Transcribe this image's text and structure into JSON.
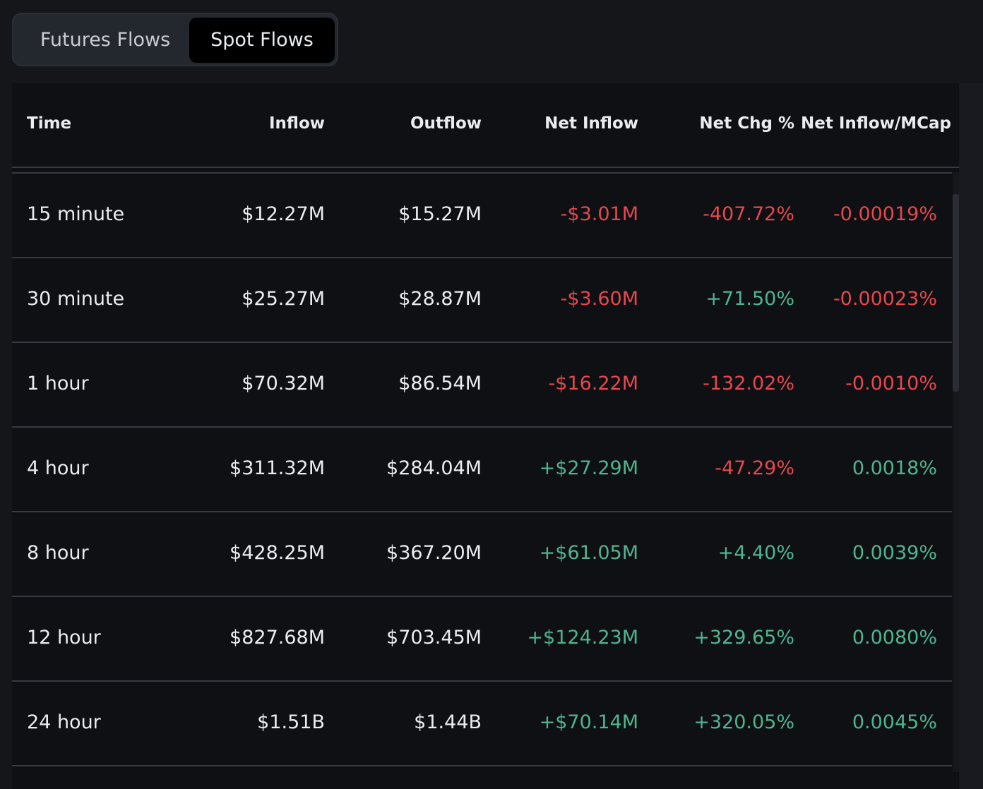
{
  "tabs": [
    {
      "label": "Futures Flows",
      "active": false
    },
    {
      "label": "Spot Flows",
      "active": true
    }
  ],
  "colors": {
    "positive": "#4fb58f",
    "negative": "#e5484d"
  },
  "table": {
    "headers": [
      "Time",
      "Inflow",
      "Outflow",
      "Net Inflow",
      "Net Chg %",
      "Net Inflow/MCap"
    ],
    "rows": [
      {
        "time": "15 minute",
        "inflow": "$12.27M",
        "outflow": "$15.27M",
        "net_inflow": "-$3.01M",
        "net_chg": "-407.72%",
        "net_mcap": "-0.00019%"
      },
      {
        "time": "30 minute",
        "inflow": "$25.27M",
        "outflow": "$28.87M",
        "net_inflow": "-$3.60M",
        "net_chg": "+71.50%",
        "net_mcap": "-0.00023%"
      },
      {
        "time": "1 hour",
        "inflow": "$70.32M",
        "outflow": "$86.54M",
        "net_inflow": "-$16.22M",
        "net_chg": "-132.02%",
        "net_mcap": "-0.0010%"
      },
      {
        "time": "4 hour",
        "inflow": "$311.32M",
        "outflow": "$284.04M",
        "net_inflow": "+$27.29M",
        "net_chg": "-47.29%",
        "net_mcap": "0.0018%"
      },
      {
        "time": "8 hour",
        "inflow": "$428.25M",
        "outflow": "$367.20M",
        "net_inflow": "+$61.05M",
        "net_chg": "+4.40%",
        "net_mcap": "0.0039%"
      },
      {
        "time": "12 hour",
        "inflow": "$827.68M",
        "outflow": "$703.45M",
        "net_inflow": "+$124.23M",
        "net_chg": "+329.65%",
        "net_mcap": "0.0080%"
      },
      {
        "time": "24 hour",
        "inflow": "$1.51B",
        "outflow": "$1.44B",
        "net_inflow": "+$70.14M",
        "net_chg": "+320.05%",
        "net_mcap": "0.0045%"
      }
    ]
  }
}
